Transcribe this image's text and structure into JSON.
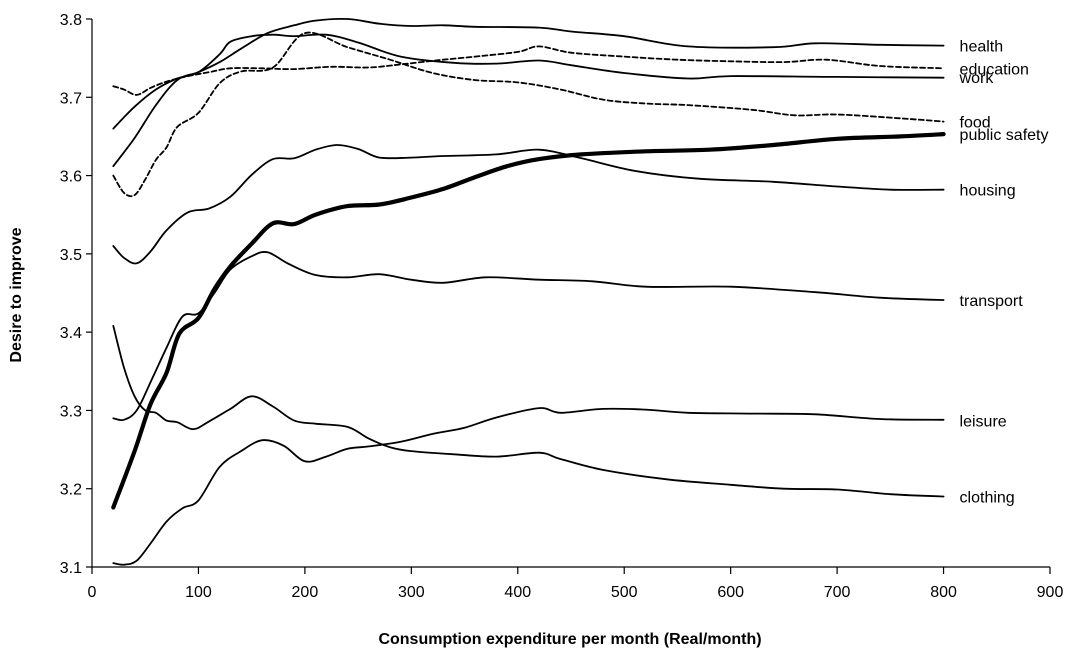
{
  "chart_data": {
    "type": "line",
    "title": "",
    "xlabel": "Consumption expenditure per month (Real/month)",
    "ylabel": "Desire to improve",
    "xlim": [
      0,
      900
    ],
    "ylim": [
      3.1,
      3.8
    ],
    "xticks": [
      "0",
      "100",
      "200",
      "300",
      "400",
      "500",
      "600",
      "700",
      "800",
      "900"
    ],
    "yticks": [
      "3.1",
      "3.2",
      "3.3",
      "3.4",
      "3.5",
      "3.6",
      "3.7",
      "3.8"
    ],
    "grid": false,
    "legend": "labels at right end of each line",
    "series": [
      {
        "name": "health",
        "style": "solid",
        "width": 1.8,
        "label_y": 3.766,
        "points": [
          [
            20,
            3.612
          ],
          [
            40,
            3.648
          ],
          [
            60,
            3.69
          ],
          [
            80,
            3.722
          ],
          [
            100,
            3.732
          ],
          [
            120,
            3.745
          ],
          [
            140,
            3.762
          ],
          [
            165,
            3.782
          ],
          [
            190,
            3.792
          ],
          [
            210,
            3.798
          ],
          [
            240,
            3.8
          ],
          [
            270,
            3.794
          ],
          [
            300,
            3.791
          ],
          [
            330,
            3.792
          ],
          [
            360,
            3.79
          ],
          [
            420,
            3.789
          ],
          [
            450,
            3.784
          ],
          [
            500,
            3.778
          ],
          [
            560,
            3.765
          ],
          [
            640,
            3.764
          ],
          [
            680,
            3.769
          ],
          [
            740,
            3.767
          ],
          [
            800,
            3.766
          ]
        ]
      },
      {
        "name": "education",
        "style": "dash",
        "width": 1.8,
        "label_y": 3.737,
        "points": [
          [
            20,
            3.714
          ],
          [
            30,
            3.71
          ],
          [
            42,
            3.703
          ],
          [
            55,
            3.712
          ],
          [
            70,
            3.72
          ],
          [
            90,
            3.727
          ],
          [
            110,
            3.732
          ],
          [
            130,
            3.737
          ],
          [
            160,
            3.737
          ],
          [
            190,
            3.736
          ],
          [
            225,
            3.739
          ],
          [
            260,
            3.738
          ],
          [
            290,
            3.742
          ],
          [
            330,
            3.748
          ],
          [
            360,
            3.752
          ],
          [
            400,
            3.758
          ],
          [
            420,
            3.765
          ],
          [
            450,
            3.757
          ],
          [
            500,
            3.752
          ],
          [
            550,
            3.748
          ],
          [
            600,
            3.746
          ],
          [
            650,
            3.745
          ],
          [
            690,
            3.748
          ],
          [
            740,
            3.74
          ],
          [
            800,
            3.737
          ]
        ]
      },
      {
        "name": "work",
        "style": "solid",
        "width": 1.8,
        "label_y": 3.726,
        "points": [
          [
            20,
            3.66
          ],
          [
            40,
            3.688
          ],
          [
            60,
            3.71
          ],
          [
            80,
            3.724
          ],
          [
            100,
            3.732
          ],
          [
            120,
            3.755
          ],
          [
            130,
            3.771
          ],
          [
            150,
            3.778
          ],
          [
            170,
            3.78
          ],
          [
            190,
            3.778
          ],
          [
            220,
            3.78
          ],
          [
            250,
            3.77
          ],
          [
            290,
            3.752
          ],
          [
            340,
            3.744
          ],
          [
            380,
            3.743
          ],
          [
            420,
            3.747
          ],
          [
            450,
            3.741
          ],
          [
            500,
            3.731
          ],
          [
            560,
            3.724
          ],
          [
            600,
            3.727
          ],
          [
            700,
            3.726
          ],
          [
            800,
            3.725
          ]
        ]
      },
      {
        "name": "food",
        "style": "dash",
        "width": 1.8,
        "label_y": 3.669,
        "points": [
          [
            20,
            3.6
          ],
          [
            30,
            3.578
          ],
          [
            40,
            3.575
          ],
          [
            50,
            3.595
          ],
          [
            60,
            3.62
          ],
          [
            70,
            3.636
          ],
          [
            80,
            3.662
          ],
          [
            100,
            3.68
          ],
          [
            120,
            3.718
          ],
          [
            140,
            3.733
          ],
          [
            170,
            3.738
          ],
          [
            200,
            3.782
          ],
          [
            240,
            3.764
          ],
          [
            280,
            3.748
          ],
          [
            320,
            3.731
          ],
          [
            360,
            3.722
          ],
          [
            400,
            3.719
          ],
          [
            440,
            3.71
          ],
          [
            480,
            3.697
          ],
          [
            520,
            3.692
          ],
          [
            560,
            3.69
          ],
          [
            620,
            3.684
          ],
          [
            660,
            3.677
          ],
          [
            700,
            3.678
          ],
          [
            760,
            3.673
          ],
          [
            800,
            3.669
          ]
        ]
      },
      {
        "name": "public safety",
        "style": "solid",
        "width": 4.2,
        "label_y": 3.653,
        "points": [
          [
            20,
            3.176
          ],
          [
            40,
            3.248
          ],
          [
            55,
            3.308
          ],
          [
            70,
            3.348
          ],
          [
            82,
            3.398
          ],
          [
            100,
            3.418
          ],
          [
            115,
            3.455
          ],
          [
            130,
            3.484
          ],
          [
            150,
            3.513
          ],
          [
            170,
            3.539
          ],
          [
            190,
            3.538
          ],
          [
            210,
            3.55
          ],
          [
            240,
            3.561
          ],
          [
            270,
            3.563
          ],
          [
            300,
            3.572
          ],
          [
            330,
            3.583
          ],
          [
            360,
            3.598
          ],
          [
            390,
            3.612
          ],
          [
            420,
            3.621
          ],
          [
            460,
            3.627
          ],
          [
            520,
            3.631
          ],
          [
            580,
            3.633
          ],
          [
            640,
            3.639
          ],
          [
            700,
            3.647
          ],
          [
            760,
            3.65
          ],
          [
            800,
            3.653
          ]
        ]
      },
      {
        "name": "housing",
        "style": "solid",
        "width": 1.8,
        "label_y": 3.582,
        "points": [
          [
            20,
            3.51
          ],
          [
            30,
            3.495
          ],
          [
            42,
            3.488
          ],
          [
            55,
            3.503
          ],
          [
            70,
            3.53
          ],
          [
            90,
            3.553
          ],
          [
            110,
            3.558
          ],
          [
            130,
            3.573
          ],
          [
            150,
            3.601
          ],
          [
            170,
            3.621
          ],
          [
            190,
            3.622
          ],
          [
            210,
            3.633
          ],
          [
            230,
            3.639
          ],
          [
            250,
            3.634
          ],
          [
            270,
            3.623
          ],
          [
            300,
            3.623
          ],
          [
            330,
            3.625
          ],
          [
            380,
            3.627
          ],
          [
            420,
            3.633
          ],
          [
            460,
            3.622
          ],
          [
            510,
            3.606
          ],
          [
            570,
            3.596
          ],
          [
            640,
            3.592
          ],
          [
            700,
            3.586
          ],
          [
            750,
            3.582
          ],
          [
            800,
            3.582
          ]
        ]
      },
      {
        "name": "transport",
        "style": "solid",
        "width": 1.8,
        "label_y": 3.441,
        "points": [
          [
            20,
            3.29
          ],
          [
            30,
            3.288
          ],
          [
            42,
            3.3
          ],
          [
            55,
            3.336
          ],
          [
            70,
            3.38
          ],
          [
            85,
            3.42
          ],
          [
            100,
            3.424
          ],
          [
            115,
            3.45
          ],
          [
            130,
            3.48
          ],
          [
            150,
            3.497
          ],
          [
            165,
            3.502
          ],
          [
            185,
            3.487
          ],
          [
            210,
            3.473
          ],
          [
            240,
            3.47
          ],
          [
            270,
            3.474
          ],
          [
            300,
            3.467
          ],
          [
            330,
            3.463
          ],
          [
            370,
            3.47
          ],
          [
            420,
            3.467
          ],
          [
            470,
            3.465
          ],
          [
            520,
            3.458
          ],
          [
            600,
            3.458
          ],
          [
            680,
            3.451
          ],
          [
            740,
            3.444
          ],
          [
            800,
            3.441
          ]
        ]
      },
      {
        "name": "leisure",
        "style": "solid",
        "width": 1.8,
        "label_y": 3.287,
        "points": [
          [
            20,
            3.408
          ],
          [
            30,
            3.355
          ],
          [
            40,
            3.318
          ],
          [
            50,
            3.3
          ],
          [
            60,
            3.297
          ],
          [
            70,
            3.287
          ],
          [
            80,
            3.285
          ],
          [
            95,
            3.276
          ],
          [
            110,
            3.286
          ],
          [
            130,
            3.302
          ],
          [
            150,
            3.318
          ],
          [
            170,
            3.305
          ],
          [
            190,
            3.287
          ],
          [
            210,
            3.283
          ],
          [
            240,
            3.279
          ],
          [
            260,
            3.264
          ],
          [
            280,
            3.253
          ],
          [
            300,
            3.248
          ],
          [
            340,
            3.244
          ],
          [
            380,
            3.241
          ],
          [
            420,
            3.246
          ],
          [
            440,
            3.238
          ],
          [
            480,
            3.224
          ],
          [
            540,
            3.212
          ],
          [
            600,
            3.205
          ],
          [
            650,
            3.2
          ],
          [
            700,
            3.199
          ],
          [
            750,
            3.193
          ],
          [
            800,
            3.19
          ]
        ]
      },
      {
        "name": "clothing",
        "style": "solid",
        "width": 1.8,
        "label_y": 3.19,
        "points": [
          [
            20,
            3.105
          ],
          [
            30,
            3.103
          ],
          [
            42,
            3.108
          ],
          [
            55,
            3.13
          ],
          [
            70,
            3.158
          ],
          [
            85,
            3.175
          ],
          [
            100,
            3.185
          ],
          [
            120,
            3.228
          ],
          [
            140,
            3.248
          ],
          [
            160,
            3.262
          ],
          [
            180,
            3.255
          ],
          [
            200,
            3.235
          ],
          [
            220,
            3.241
          ],
          [
            240,
            3.251
          ],
          [
            260,
            3.254
          ],
          [
            290,
            3.26
          ],
          [
            320,
            3.27
          ],
          [
            350,
            3.278
          ],
          [
            380,
            3.291
          ],
          [
            420,
            3.303
          ],
          [
            440,
            3.297
          ],
          [
            480,
            3.302
          ],
          [
            520,
            3.301
          ],
          [
            560,
            3.297
          ],
          [
            620,
            3.296
          ],
          [
            680,
            3.295
          ],
          [
            740,
            3.289
          ],
          [
            800,
            3.288
          ]
        ]
      }
    ]
  }
}
